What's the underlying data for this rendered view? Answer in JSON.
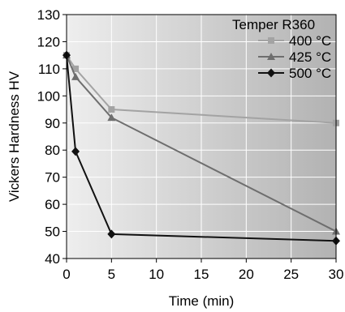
{
  "chart_data": {
    "type": "line",
    "title": "",
    "xlabel": "Time (min)",
    "ylabel": "Vickers Hardness HV",
    "xlim": [
      0,
      30
    ],
    "ylim": [
      40,
      130
    ],
    "xticks": [
      0,
      5,
      10,
      15,
      20,
      25,
      30
    ],
    "yticks": [
      40,
      50,
      60,
      70,
      80,
      90,
      100,
      110,
      120,
      130
    ],
    "grid": true,
    "legend": {
      "title": "Temper R360",
      "position": "top-right"
    },
    "series": [
      {
        "name": "400 °C",
        "color": "#a3a3a3",
        "marker": "square",
        "x": [
          0,
          1,
          5,
          30
        ],
        "y": [
          115,
          110,
          95,
          90
        ]
      },
      {
        "name": "425 °C",
        "color": "#6e6e6e",
        "marker": "triangle",
        "x": [
          0,
          1,
          5,
          30
        ],
        "y": [
          115,
          107,
          92,
          50
        ]
      },
      {
        "name": "500 °C",
        "color": "#111111",
        "marker": "diamond",
        "x": [
          0,
          1,
          5,
          30
        ],
        "y": [
          115,
          79.5,
          49,
          46.5
        ]
      }
    ]
  }
}
